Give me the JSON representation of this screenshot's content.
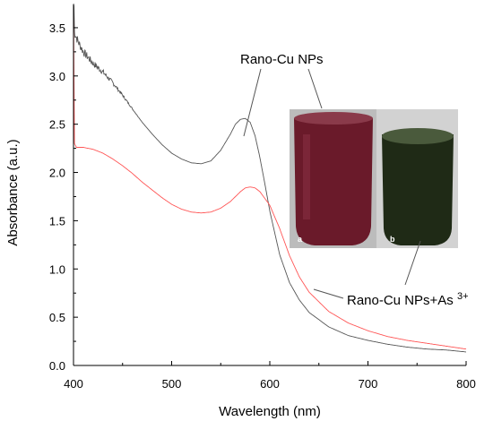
{
  "chart_data": {
    "type": "line",
    "title": "",
    "xlabel": "Wavelength (nm)",
    "ylabel": "Absorbance (a.u.)",
    "xlim": [
      400,
      800
    ],
    "ylim": [
      0.0,
      3.75
    ],
    "xticks": [
      400,
      500,
      600,
      700,
      800
    ],
    "yticks": [
      0.0,
      0.5,
      1.0,
      1.5,
      2.0,
      2.5,
      3.0,
      3.5
    ],
    "ytick_labels": [
      "0.0",
      "0.5",
      "1.0",
      "1.5",
      "2.0",
      "2.5",
      "3.0",
      "3.5"
    ],
    "grid": false,
    "legend": "none",
    "series": [
      {
        "name": "Rano-Cu NPs",
        "color": "#555555",
        "noisy_below_x": 470,
        "x": [
          400,
          401,
          405,
          410,
          420,
          430,
          440,
          450,
          460,
          470,
          480,
          490,
          500,
          510,
          520,
          530,
          540,
          550,
          560,
          565,
          570,
          575,
          580,
          585,
          590,
          595,
          600,
          610,
          620,
          630,
          640,
          660,
          680,
          700,
          720,
          740,
          760,
          780,
          800
        ],
        "y": [
          4.0,
          3.45,
          3.35,
          3.25,
          3.13,
          3.04,
          2.93,
          2.8,
          2.66,
          2.52,
          2.4,
          2.29,
          2.2,
          2.14,
          2.1,
          2.09,
          2.12,
          2.23,
          2.4,
          2.5,
          2.55,
          2.56,
          2.52,
          2.38,
          2.15,
          1.88,
          1.6,
          1.15,
          0.86,
          0.68,
          0.55,
          0.4,
          0.31,
          0.26,
          0.22,
          0.19,
          0.17,
          0.16,
          0.14
        ]
      },
      {
        "name": "Rano-Cu NPs+As 3+",
        "color": "#ff5555",
        "x": [
          400,
          401,
          403,
          410,
          420,
          430,
          440,
          450,
          460,
          470,
          480,
          490,
          500,
          510,
          520,
          530,
          540,
          550,
          560,
          570,
          575,
          580,
          585,
          590,
          600,
          610,
          620,
          630,
          640,
          660,
          680,
          700,
          720,
          740,
          760,
          780,
          800
        ],
        "y": [
          3.7,
          2.3,
          2.26,
          2.26,
          2.24,
          2.2,
          2.14,
          2.07,
          1.99,
          1.9,
          1.82,
          1.74,
          1.67,
          1.62,
          1.59,
          1.58,
          1.59,
          1.63,
          1.7,
          1.8,
          1.84,
          1.85,
          1.84,
          1.8,
          1.66,
          1.42,
          1.14,
          0.92,
          0.76,
          0.56,
          0.44,
          0.36,
          0.3,
          0.26,
          0.23,
          0.2,
          0.17
        ]
      }
    ],
    "annotations": [
      {
        "text_main": "Rano-Cu NPs",
        "text_sup": ""
      },
      {
        "text_main": "Rano-Cu NPs+As ",
        "text_sup": "3+"
      }
    ],
    "inset_photo": {
      "vial_labels": [
        "a",
        "b"
      ],
      "vial_colors": [
        "#6a1a2a",
        "#1f2a16"
      ],
      "background_color": "#bcbcbc"
    }
  }
}
